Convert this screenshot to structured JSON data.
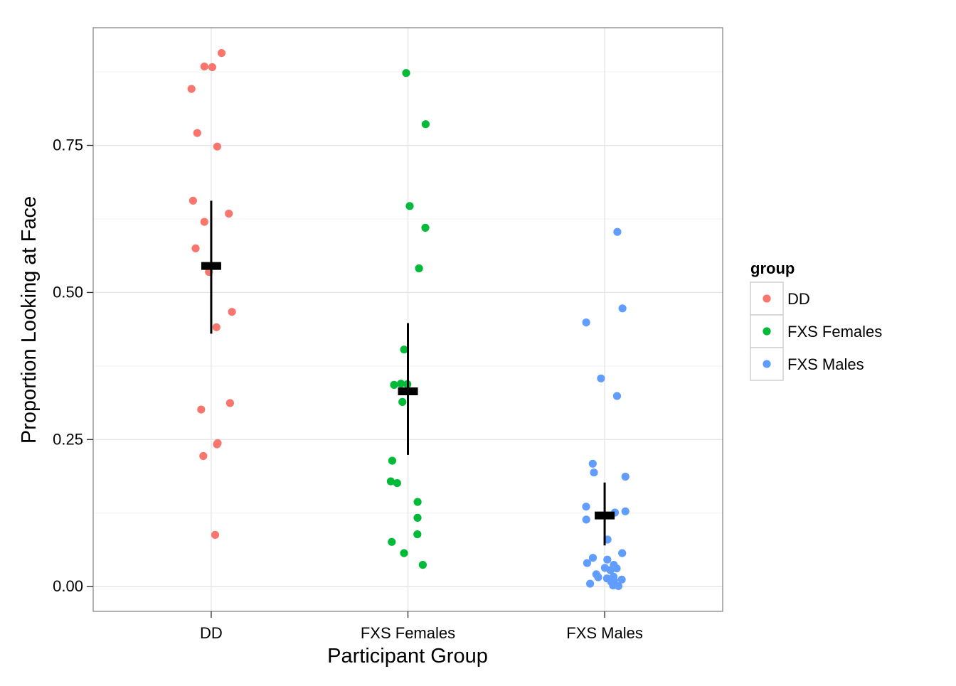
{
  "chart_data": {
    "type": "scatter",
    "xlabel": "Participant Group",
    "ylabel": "Proportion Looking at Face",
    "ylim": [
      -0.042,
      0.95
    ],
    "yticks": [
      0.0,
      0.25,
      0.5,
      0.75
    ],
    "ytick_labels": [
      "0.00",
      "0.25",
      "0.50",
      "0.75"
    ],
    "categories": [
      "DD",
      "FXS Females",
      "FXS Males"
    ],
    "grid": true,
    "legend": {
      "title": "group",
      "placement": "right"
    },
    "series": [
      {
        "name": "DD",
        "color": "#F8766D",
        "points": [
          {
            "x": "DD",
            "y": 0.907
          },
          {
            "x": "DD",
            "y": 0.883
          },
          {
            "x": "DD",
            "y": 0.884
          },
          {
            "x": "DD",
            "y": 0.846
          },
          {
            "x": "DD",
            "y": 0.771
          },
          {
            "x": "DD",
            "y": 0.748
          },
          {
            "x": "DD",
            "y": 0.656
          },
          {
            "x": "DD",
            "y": 0.634
          },
          {
            "x": "DD",
            "y": 0.62
          },
          {
            "x": "DD",
            "y": 0.575
          },
          {
            "x": "DD",
            "y": 0.535
          },
          {
            "x": "DD",
            "y": 0.467
          },
          {
            "x": "DD",
            "y": 0.441
          },
          {
            "x": "DD",
            "y": 0.312
          },
          {
            "x": "DD",
            "y": 0.301
          },
          {
            "x": "DD",
            "y": 0.244
          },
          {
            "x": "DD",
            "y": 0.242
          },
          {
            "x": "DD",
            "y": 0.222
          },
          {
            "x": "DD",
            "y": 0.088
          }
        ],
        "summary": {
          "mean": 0.545,
          "lower": 0.43,
          "upper": 0.656
        }
      },
      {
        "name": "FXS Females",
        "color": "#00BA38",
        "points": [
          {
            "x": "FXS Females",
            "y": 0.873
          },
          {
            "x": "FXS Females",
            "y": 0.786
          },
          {
            "x": "FXS Females",
            "y": 0.647
          },
          {
            "x": "FXS Females",
            "y": 0.61
          },
          {
            "x": "FXS Females",
            "y": 0.541
          },
          {
            "x": "FXS Females",
            "y": 0.403
          },
          {
            "x": "FXS Females",
            "y": 0.345
          },
          {
            "x": "FXS Females",
            "y": 0.344
          },
          {
            "x": "FXS Females",
            "y": 0.343
          },
          {
            "x": "FXS Females",
            "y": 0.314
          },
          {
            "x": "FXS Females",
            "y": 0.214
          },
          {
            "x": "FXS Females",
            "y": 0.179
          },
          {
            "x": "FXS Females",
            "y": 0.176
          },
          {
            "x": "FXS Females",
            "y": 0.144
          },
          {
            "x": "FXS Females",
            "y": 0.117
          },
          {
            "x": "FXS Females",
            "y": 0.089
          },
          {
            "x": "FXS Females",
            "y": 0.076
          },
          {
            "x": "FXS Females",
            "y": 0.057
          },
          {
            "x": "FXS Females",
            "y": 0.037
          }
        ],
        "summary": {
          "mean": 0.332,
          "lower": 0.224,
          "upper": 0.448
        }
      },
      {
        "name": "FXS Males",
        "color": "#619CFF",
        "points": [
          {
            "x": "FXS Males",
            "y": 0.603
          },
          {
            "x": "FXS Males",
            "y": 0.473
          },
          {
            "x": "FXS Males",
            "y": 0.449
          },
          {
            "x": "FXS Males",
            "y": 0.354
          },
          {
            "x": "FXS Males",
            "y": 0.324
          },
          {
            "x": "FXS Males",
            "y": 0.209
          },
          {
            "x": "FXS Males",
            "y": 0.194
          },
          {
            "x": "FXS Males",
            "y": 0.187
          },
          {
            "x": "FXS Males",
            "y": 0.136
          },
          {
            "x": "FXS Males",
            "y": 0.128
          },
          {
            "x": "FXS Males",
            "y": 0.126
          },
          {
            "x": "FXS Males",
            "y": 0.114
          },
          {
            "x": "FXS Males",
            "y": 0.08
          },
          {
            "x": "FXS Males",
            "y": 0.057
          },
          {
            "x": "FXS Males",
            "y": 0.049
          },
          {
            "x": "FXS Males",
            "y": 0.046
          },
          {
            "x": "FXS Males",
            "y": 0.04
          },
          {
            "x": "FXS Males",
            "y": 0.037
          },
          {
            "x": "FXS Males",
            "y": 0.032
          },
          {
            "x": "FXS Males",
            "y": 0.031
          },
          {
            "x": "FXS Males",
            "y": 0.028
          },
          {
            "x": "FXS Males",
            "y": 0.021
          },
          {
            "x": "FXS Males",
            "y": 0.017
          },
          {
            "x": "FXS Males",
            "y": 0.016
          },
          {
            "x": "FXS Males",
            "y": 0.014
          },
          {
            "x": "FXS Males",
            "y": 0.012
          },
          {
            "x": "FXS Males",
            "y": 0.01
          },
          {
            "x": "FXS Males",
            "y": 0.008
          },
          {
            "x": "FXS Males",
            "y": 0.005
          },
          {
            "x": "FXS Males",
            "y": 0.002
          },
          {
            "x": "FXS Males",
            "y": 0.001
          }
        ],
        "summary": {
          "mean": 0.121,
          "lower": 0.07,
          "upper": 0.177
        }
      }
    ]
  }
}
